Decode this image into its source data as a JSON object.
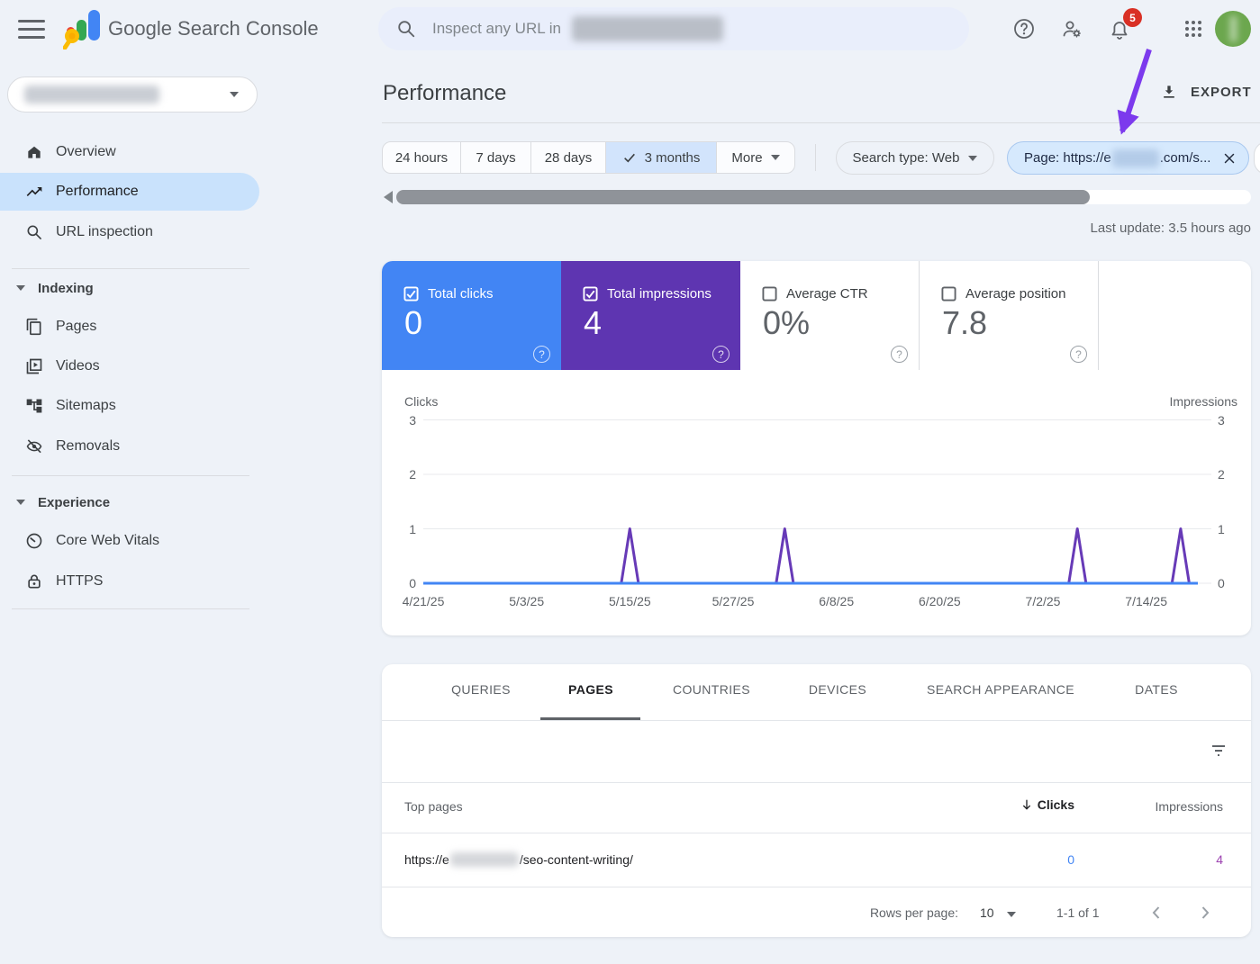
{
  "topbar": {
    "app_title": "Google Search Console",
    "search_placeholder": "Inspect any URL in",
    "notification_count": "5"
  },
  "sidebar": {
    "items": [
      {
        "label": "Overview"
      },
      {
        "label": "Performance"
      },
      {
        "label": "URL inspection"
      }
    ],
    "sections": [
      {
        "label": "Indexing",
        "items": [
          {
            "label": "Pages"
          },
          {
            "label": "Videos"
          },
          {
            "label": "Sitemaps"
          },
          {
            "label": "Removals"
          }
        ]
      },
      {
        "label": "Experience",
        "items": [
          {
            "label": "Core Web Vitals"
          },
          {
            "label": "HTTPS"
          }
        ]
      }
    ]
  },
  "header": {
    "title": "Performance",
    "export_label": "EXPORT"
  },
  "filters": {
    "date_options": [
      "24 hours",
      "7 days",
      "28 days",
      "3 months"
    ],
    "selected_date_option": "3 months",
    "more_label": "More",
    "search_type_label": "Search type: Web",
    "page_filter": {
      "prefix": "Page: https://e",
      "suffix": ".com/s..."
    }
  },
  "status": {
    "last_update": "Last update: 3.5 hours ago"
  },
  "metrics": {
    "cards": [
      {
        "label": "Total clicks",
        "value": "0",
        "checked": true,
        "color": "#4285f4"
      },
      {
        "label": "Total impressions",
        "value": "4",
        "checked": true,
        "color": "#5e35b1"
      },
      {
        "label": "Average CTR",
        "value": "0%",
        "checked": false,
        "color": "#ffffff"
      },
      {
        "label": "Average position",
        "value": "7.8",
        "checked": false,
        "color": "#ffffff"
      }
    ]
  },
  "chart_data": {
    "type": "line",
    "left_axis_label": "Clicks",
    "right_axis_label": "Impressions",
    "ylim": [
      0,
      3
    ],
    "y_ticks": [
      0,
      1,
      2,
      3
    ],
    "grid": true,
    "legend_position": "none",
    "date_range_start": "4/21/25",
    "date_range_end": "7/20/25",
    "days_total": 90,
    "x_ticks": [
      {
        "label": "4/21/25",
        "day": 0
      },
      {
        "label": "5/3/25",
        "day": 12
      },
      {
        "label": "5/15/25",
        "day": 24
      },
      {
        "label": "5/27/25",
        "day": 36
      },
      {
        "label": "6/8/25",
        "day": 48
      },
      {
        "label": "6/20/25",
        "day": 60
      },
      {
        "label": "7/2/25",
        "day": 72
      },
      {
        "label": "7/14/25",
        "day": 84
      }
    ],
    "series": [
      {
        "name": "Impressions",
        "color": "#673ab7",
        "baseline_value": 0,
        "total": 4,
        "spikes": [
          {
            "date": "5/15/25",
            "day": 24,
            "value": 1
          },
          {
            "date": "6/2/25",
            "day": 42,
            "value": 1
          },
          {
            "date": "7/6/25",
            "day": 76,
            "value": 1
          },
          {
            "date": "7/18/25",
            "day": 88,
            "value": 1
          }
        ]
      },
      {
        "name": "Clicks",
        "color": "#4285f4",
        "baseline_value": 0,
        "total": 0,
        "spikes": []
      }
    ]
  },
  "table": {
    "tabs": [
      "QUERIES",
      "PAGES",
      "COUNTRIES",
      "DEVICES",
      "SEARCH APPEARANCE",
      "DATES"
    ],
    "active_tab": "PAGES",
    "columns": {
      "top_pages": "Top pages",
      "clicks": "Clicks",
      "impressions": "Impressions"
    },
    "rows": [
      {
        "url_prefix": "https://e",
        "url_suffix": "/seo-content-writing/",
        "clicks": "0",
        "impressions": "4"
      }
    ],
    "pagination": {
      "rows_per_page_label": "Rows per page:",
      "rows_per_page": "10",
      "range": "1-1 of 1"
    }
  }
}
